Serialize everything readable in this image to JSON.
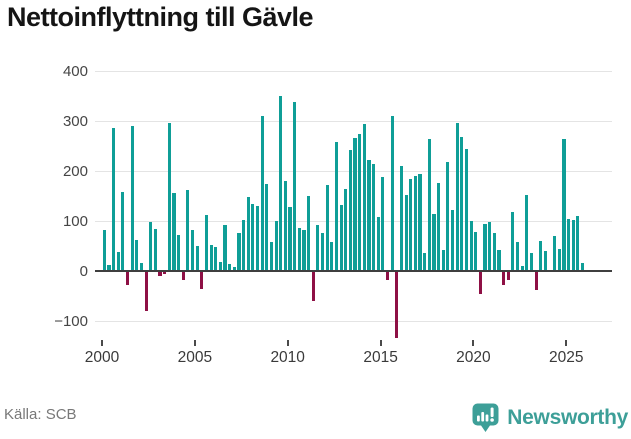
{
  "title": "Nettoinflyttning till Gävle",
  "footer": {
    "source": "Källa: SCB"
  },
  "brand": {
    "name": "Newsworthy"
  },
  "colors": {
    "positive_bar": "#0f9e97",
    "negative_bar": "#8e1045",
    "grid": "#e4e4e4",
    "zero_line": "#3f3f3f",
    "brand_teal": "#3d9f98",
    "title_text": "#151515",
    "axis_text": "#454545"
  },
  "chart_data": {
    "type": "bar",
    "title": "Nettoinflyttning till Gävle",
    "xlabel": "",
    "ylabel": "",
    "x_tick_labels": [
      "2000",
      "2005",
      "2010",
      "2015",
      "2020",
      "2025"
    ],
    "y_ticks": [
      400,
      300,
      200,
      100,
      0,
      -100
    ],
    "y_tick_labels": [
      "400",
      "300",
      "200",
      "100",
      "0",
      "−100"
    ],
    "ylim": [
      -140,
      410
    ],
    "grid": true,
    "legend": "none",
    "period": "quarterly",
    "quarters": [
      "2000 Q1",
      "2000 Q2",
      "2000 Q3",
      "2000 Q4",
      "2001 Q1",
      "2001 Q2",
      "2001 Q3",
      "2001 Q4",
      "2002 Q1",
      "2002 Q2",
      "2002 Q3",
      "2002 Q4",
      "2003 Q1",
      "2003 Q2",
      "2003 Q3",
      "2003 Q4",
      "2004 Q1",
      "2004 Q2",
      "2004 Q3",
      "2004 Q4",
      "2005 Q1",
      "2005 Q2",
      "2005 Q3",
      "2005 Q4",
      "2006 Q1",
      "2006 Q2",
      "2006 Q3",
      "2006 Q4",
      "2007 Q1",
      "2007 Q2",
      "2007 Q3",
      "2007 Q4",
      "2008 Q1",
      "2008 Q2",
      "2008 Q3",
      "2008 Q4",
      "2009 Q1",
      "2009 Q2",
      "2009 Q3",
      "2009 Q4",
      "2010 Q1",
      "2010 Q2",
      "2010 Q3",
      "2010 Q4",
      "2011 Q1",
      "2011 Q2",
      "2011 Q3",
      "2011 Q4",
      "2012 Q1",
      "2012 Q2",
      "2012 Q3",
      "2012 Q4",
      "2013 Q1",
      "2013 Q2",
      "2013 Q3",
      "2013 Q4",
      "2014 Q1",
      "2014 Q2",
      "2014 Q3",
      "2014 Q4",
      "2015 Q1",
      "2015 Q2",
      "2015 Q3",
      "2015 Q4",
      "2016 Q1",
      "2016 Q2",
      "2016 Q3",
      "2016 Q4",
      "2017 Q1",
      "2017 Q2",
      "2017 Q3",
      "2017 Q4",
      "2018 Q1",
      "2018 Q2",
      "2018 Q3",
      "2018 Q4",
      "2019 Q1",
      "2019 Q2",
      "2019 Q3",
      "2019 Q4",
      "2020 Q1",
      "2020 Q2",
      "2020 Q3",
      "2020 Q4",
      "2021 Q1",
      "2021 Q2",
      "2021 Q3",
      "2021 Q4",
      "2022 Q1",
      "2022 Q2",
      "2022 Q3",
      "2022 Q4",
      "2023 Q1",
      "2023 Q2",
      "2023 Q3",
      "2023 Q4",
      "2024 Q1",
      "2024 Q2",
      "2024 Q3",
      "2024 Q4",
      "2025 Q1",
      "2025 Q2",
      "2025 Q3",
      "2025 Q4"
    ],
    "values": [
      82,
      13,
      287,
      39,
      158,
      -27,
      291,
      63,
      17,
      -80,
      99,
      85,
      -10,
      -5,
      297,
      157,
      73,
      -18,
      162,
      82,
      51,
      -35,
      113,
      53,
      49,
      19,
      92,
      15,
      9,
      77,
      102,
      149,
      135,
      131,
      310,
      175,
      59,
      100,
      350,
      180,
      129,
      339,
      87,
      83,
      150,
      -60,
      92,
      77,
      172,
      59,
      259,
      132,
      165,
      243,
      267,
      274,
      295,
      222,
      214,
      109,
      189,
      -18,
      310,
      -133,
      210,
      152,
      185,
      190,
      195,
      37,
      264,
      115,
      177,
      43,
      219,
      122,
      297,
      268,
      245,
      100,
      79,
      -45,
      95,
      99,
      77,
      42,
      -28,
      -18,
      119,
      59,
      10,
      152,
      37,
      -38,
      60,
      40,
      2,
      70,
      44,
      264,
      105,
      103,
      110,
      17
    ]
  }
}
